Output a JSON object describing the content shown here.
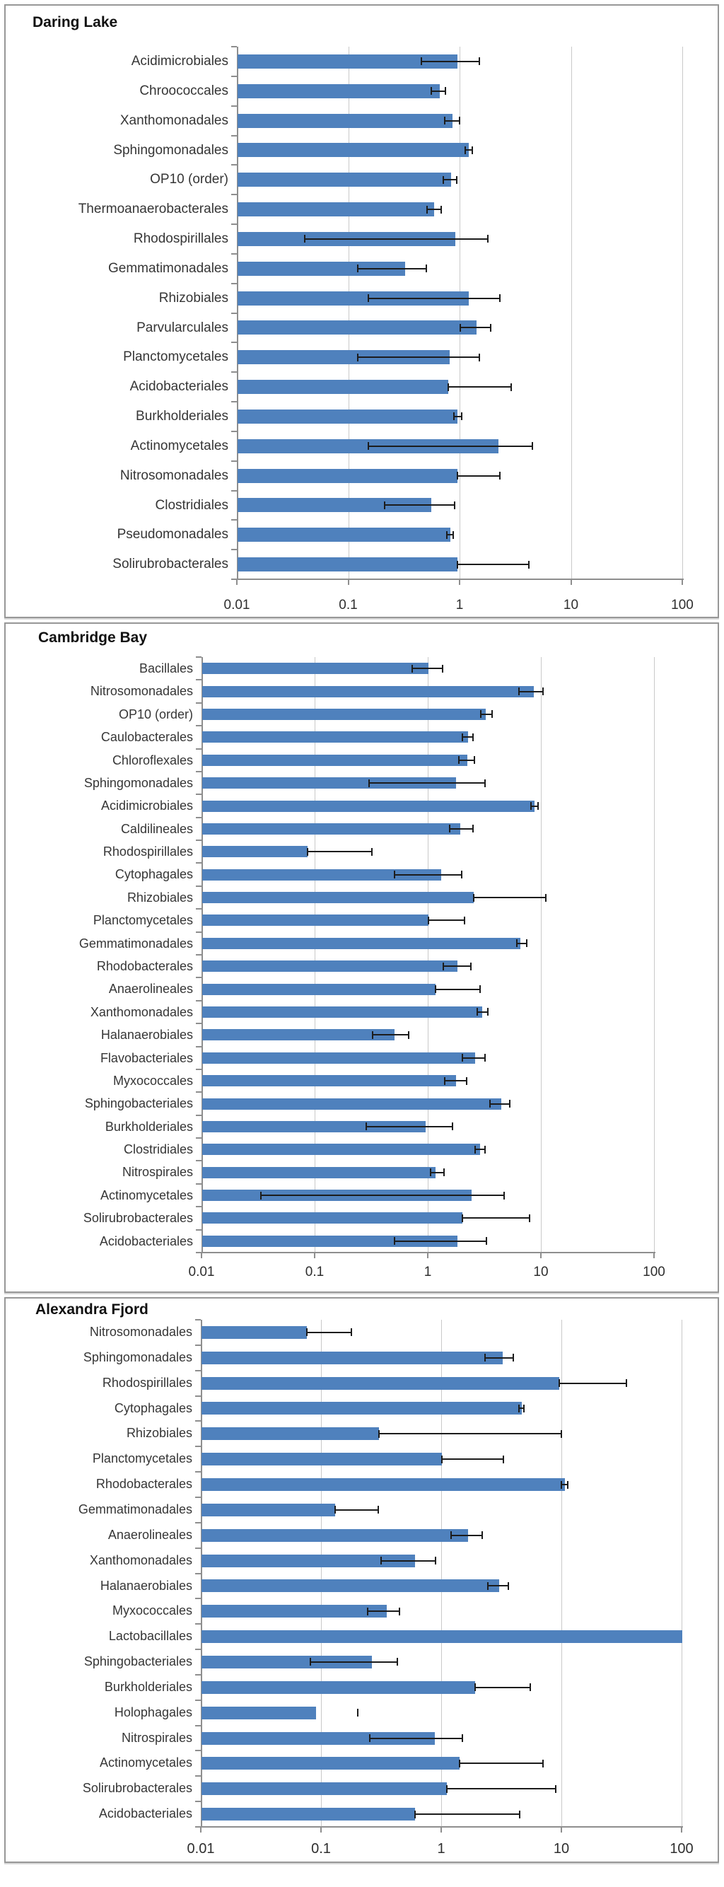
{
  "colors": {
    "bar_fill": "#4f81bd",
    "gridline": "#c9c9c9",
    "axis": "#8e8e8e",
    "error_bar": "#1c1c1c",
    "panel_border": "#979797",
    "label_text": "#363636",
    "title_text": "#111111"
  },
  "chart_data": [
    {
      "type": "bar",
      "orientation": "horizontal",
      "x_scale": "log",
      "xlim": [
        0.01,
        100
      ],
      "grid": true,
      "title": "Daring Lake",
      "x_tick_labels": [
        "0.01",
        "0.1",
        "1",
        "10",
        "100"
      ],
      "categories": [
        "Acidimicrobiales",
        "Chroococcales",
        "Xanthomonadales",
        "Sphingomonadales",
        "OP10 (order)",
        "Thermoanaerobacterales",
        "Rhodospirillales",
        "Gemmatimonadales",
        "Rhizobiales",
        "Parvularculales",
        "Planctomycetales",
        "Acidobacteriales",
        "Burkholderiales",
        "Actinomycetales",
        "Nitrosomonadales",
        "Clostridiales",
        "Pseudomonadales",
        "Solirubrobacterales"
      ],
      "values": [
        0.95,
        0.65,
        0.85,
        1.2,
        0.83,
        0.58,
        0.9,
        0.32,
        1.2,
        1.4,
        0.8,
        0.78,
        0.95,
        2.2,
        0.95,
        0.55,
        0.82,
        0.95
      ],
      "error_low": [
        0.45,
        0.55,
        0.72,
        1.1,
        0.7,
        0.5,
        0.04,
        0.12,
        0.15,
        1.0,
        0.12,
        0.78,
        0.88,
        0.15,
        0.95,
        0.21,
        0.76,
        0.95
      ],
      "error_high": [
        1.5,
        0.75,
        1.0,
        1.3,
        0.95,
        0.68,
        1.8,
        0.5,
        2.3,
        1.9,
        1.5,
        2.9,
        1.05,
        4.5,
        2.3,
        0.9,
        0.88,
        4.2
      ],
      "error_style": [
        "bar",
        "bar",
        "bar",
        "bar",
        "bar",
        "bar",
        "bar",
        "bar",
        "bar",
        "bar",
        "bar",
        "bar",
        "bar",
        "bar",
        "bar",
        "bar",
        "bar",
        "bar"
      ]
    },
    {
      "type": "bar",
      "orientation": "horizontal",
      "x_scale": "log",
      "xlim": [
        0.01,
        100
      ],
      "grid": true,
      "title": "Cambridge Bay",
      "x_tick_labels": [
        "0.01",
        "0.1",
        "1",
        "10",
        "100"
      ],
      "categories": [
        "Bacillales",
        "Nitrosomonadales",
        "OP10 (order)",
        "Caulobacterales",
        "Chloroflexales",
        "Sphingomonadales",
        "Acidimicrobiales",
        "Caldilineales",
        "Rhodospirillales",
        "Cytophagales",
        "Rhizobiales",
        "Planctomycetales",
        "Gemmatimonadales",
        "Rhodobacterales",
        "Anaerolineales",
        "Xanthomonadales",
        "Halanaerobiales",
        "Flavobacteriales",
        "Myxococcales",
        "Sphingobacteriales",
        "Burkholderiales",
        "Clostridiales",
        "Nitrospirales",
        "Actinomycetales",
        "Solirubrobacterales",
        "Acidobacteriales"
      ],
      "values": [
        1.0,
        8.5,
        3.2,
        2.25,
        2.2,
        1.75,
        8.7,
        1.9,
        0.085,
        1.3,
        2.5,
        1.0,
        6.5,
        1.8,
        1.15,
        3.0,
        0.5,
        2.6,
        1.75,
        4.4,
        0.95,
        2.85,
        1.15,
        2.4,
        2.0,
        1.8
      ],
      "error_low": [
        0.72,
        6.3,
        2.9,
        2.0,
        1.85,
        0.3,
        8.1,
        1.55,
        0.085,
        0.5,
        2.5,
        1.0,
        6.0,
        1.35,
        1.15,
        2.7,
        0.32,
        2.0,
        1.4,
        3.5,
        0.28,
        2.6,
        1.05,
        0.033,
        2.0,
        0.5
      ],
      "error_high": [
        1.35,
        10.5,
        3.7,
        2.5,
        2.6,
        3.2,
        9.5,
        2.5,
        0.32,
        2.0,
        11,
        2.1,
        7.5,
        2.4,
        2.9,
        3.4,
        0.68,
        3.2,
        2.2,
        5.3,
        1.65,
        3.2,
        1.4,
        4.7,
        8,
        3.3
      ],
      "error_style": [
        "bar",
        "bar",
        "bar",
        "bar",
        "bar",
        "bar",
        "bar",
        "bar",
        "bar",
        "bar",
        "bar",
        "bar",
        "bar",
        "bar",
        "bar",
        "bar",
        "bar",
        "bar",
        "bar",
        "bar",
        "bar",
        "bar",
        "bar",
        "bar",
        "bar",
        "bar"
      ]
    },
    {
      "type": "bar",
      "orientation": "horizontal",
      "x_scale": "log",
      "xlim": [
        0.01,
        100
      ],
      "grid": true,
      "title": "Alexandra Fjord",
      "x_tick_labels": [
        "0.01",
        "0.1",
        "1",
        "10",
        "100"
      ],
      "categories": [
        "Nitrosomonadales",
        "Sphingomonadales",
        "Rhodospirillales",
        "Cytophagales",
        "Rhizobiales",
        "Planctomycetales",
        "Rhodobacterales",
        "Gemmatimonadales",
        "Anaerolineales",
        "Xanthomonadales",
        "Halanaerobiales",
        "Myxococcales",
        "Lactobacillales",
        "Sphingobacteriales",
        "Burkholderiales",
        "Holophagales",
        "Nitrospirales",
        "Actinomycetales",
        "Solirubrobacterales",
        "Acidobacteriales"
      ],
      "values": [
        0.075,
        3.2,
        9.5,
        4.6,
        0.3,
        1.0,
        10.5,
        0.13,
        1.65,
        0.6,
        3.0,
        0.35,
        100,
        0.26,
        1.9,
        0.09,
        0.87,
        1.4,
        1.1,
        0.6
      ],
      "error_low": [
        0.075,
        2.3,
        9.5,
        4.4,
        0.3,
        1.0,
        9.8,
        0.13,
        1.2,
        0.31,
        2.4,
        0.24,
        null,
        0.08,
        1.9,
        null,
        0.25,
        1.4,
        1.1,
        0.6
      ],
      "error_high": [
        0.18,
        4.0,
        35,
        4.9,
        10,
        3.3,
        11.3,
        0.3,
        2.2,
        0.9,
        3.6,
        0.45,
        null,
        0.43,
        5.5,
        0.2,
        1.5,
        7,
        9,
        4.5
      ],
      "error_style": [
        "bar",
        "bar",
        "bar",
        "bar",
        "bar",
        "bar",
        "bar",
        "bar",
        "bar",
        "bar",
        "bar",
        "bar",
        "none",
        "bar",
        "bar",
        "cap-only",
        "bar",
        "bar",
        "bar",
        "bar"
      ]
    }
  ]
}
